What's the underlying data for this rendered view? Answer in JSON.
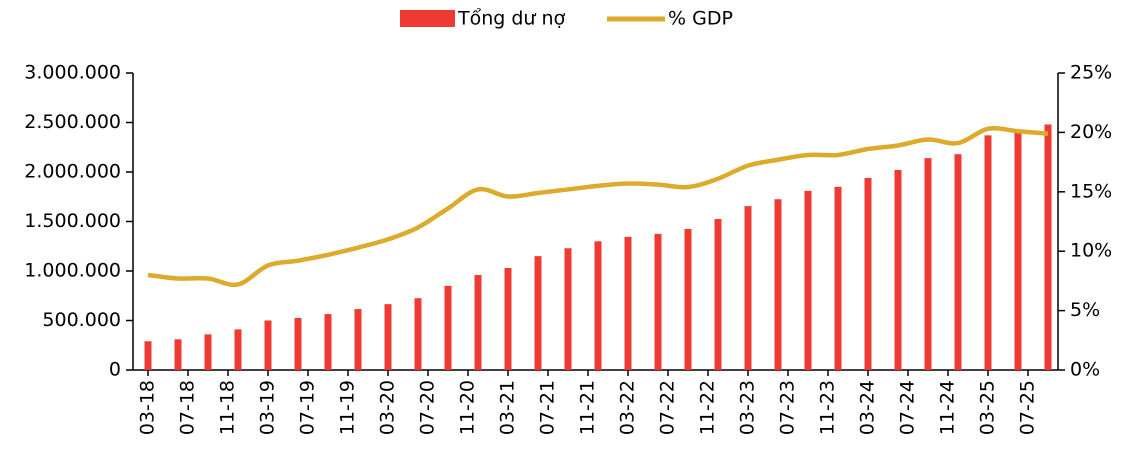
{
  "chart_data": {
    "type": "bar",
    "categories": [
      "03-18",
      null,
      null,
      null,
      "07-18",
      null,
      null,
      null,
      "11-18",
      null,
      null,
      null,
      "03-19",
      null,
      null,
      null,
      "07-19",
      null,
      null,
      null,
      "11-19",
      null,
      null,
      null,
      "03-20",
      null,
      null,
      null,
      "07-20",
      null,
      null,
      null,
      "11-20",
      null,
      null,
      null,
      "03-21",
      null,
      null,
      null,
      "07-21",
      null,
      null,
      null,
      "11-21",
      null,
      null,
      null,
      "03-22",
      null,
      null,
      null,
      "07-22",
      null,
      null,
      null,
      "11-22",
      null,
      null,
      null,
      "03-23",
      null,
      null,
      null,
      "07-23",
      null,
      null,
      null,
      "11-23",
      null,
      null,
      null,
      "03-24",
      null,
      null,
      null,
      "07-24",
      null,
      null,
      null,
      "11-24",
      null,
      null,
      null,
      "03-25",
      null,
      null,
      null,
      "07-25",
      null,
      null
    ],
    "series": [
      {
        "name": "Tổng dư nợ",
        "type": "bar",
        "color": "#ee3a32",
        "values": [
          290000,
          null,
          null,
          310000,
          null,
          null,
          360000,
          null,
          null,
          410000,
          null,
          null,
          500000,
          null,
          null,
          525000,
          null,
          null,
          565000,
          null,
          null,
          615000,
          null,
          null,
          665000,
          null,
          null,
          725000,
          null,
          null,
          850000,
          null,
          null,
          960000,
          null,
          null,
          1030000,
          null,
          null,
          1150000,
          null,
          null,
          1230000,
          null,
          null,
          1300000,
          null,
          null,
          1345000,
          null,
          null,
          1375000,
          null,
          null,
          1425000,
          null,
          null,
          1525000,
          null,
          null,
          1655000,
          null,
          null,
          1725000,
          null,
          null,
          1810000,
          null,
          null,
          1850000,
          null,
          null,
          1940000,
          null,
          null,
          2020000,
          null,
          null,
          2140000,
          null,
          null,
          2180000,
          null,
          null,
          2370000,
          null,
          null,
          2410000,
          null,
          null,
          2480000
        ]
      },
      {
        "name": "% GDP",
        "type": "line",
        "color": "#dcab2b",
        "axis": "y2",
        "values": [
          8.0,
          null,
          null,
          7.7,
          null,
          null,
          7.7,
          null,
          null,
          7.2,
          null,
          null,
          8.8,
          null,
          null,
          9.2,
          null,
          null,
          9.7,
          null,
          null,
          10.3,
          null,
          null,
          11.0,
          null,
          null,
          12.0,
          null,
          null,
          13.6,
          null,
          null,
          15.2,
          null,
          null,
          14.6,
          null,
          null,
          14.9,
          null,
          null,
          15.2,
          null,
          null,
          15.5,
          null,
          null,
          15.7,
          null,
          null,
          15.6,
          null,
          null,
          15.4,
          null,
          null,
          16.1,
          null,
          null,
          17.2,
          null,
          null,
          17.7,
          null,
          null,
          18.1,
          null,
          null,
          18.1,
          null,
          null,
          18.6,
          null,
          null,
          18.9,
          null,
          null,
          19.4,
          null,
          null,
          19.1,
          null,
          null,
          20.3,
          null,
          null,
          20.1,
          null,
          null,
          19.9
        ]
      }
    ],
    "ylim": [
      0,
      3000000
    ],
    "yticks": [
      0,
      {
        "value": 500000,
        "label": "500.000"
      },
      {
        "value": 1000000,
        "label": "1.000.000"
      },
      {
        "value": 1500000,
        "label": "1.500.000"
      },
      {
        "value": 2000000,
        "label": "2.000.000"
      },
      {
        "value": 2500000,
        "label": "2.500.000"
      },
      {
        "value": 3000000,
        "label": "3.000.000"
      }
    ],
    "y2lim": [
      0,
      25
    ],
    "y2ticks": [
      {
        "value": 0,
        "label": "0%"
      },
      {
        "value": 5,
        "label": "5%"
      },
      {
        "value": 10,
        "label": "10%"
      },
      {
        "value": 15,
        "label": "15%"
      },
      {
        "value": 20,
        "label": "20%"
      },
      {
        "value": 25,
        "label": "25%"
      }
    ],
    "legend": "top"
  }
}
